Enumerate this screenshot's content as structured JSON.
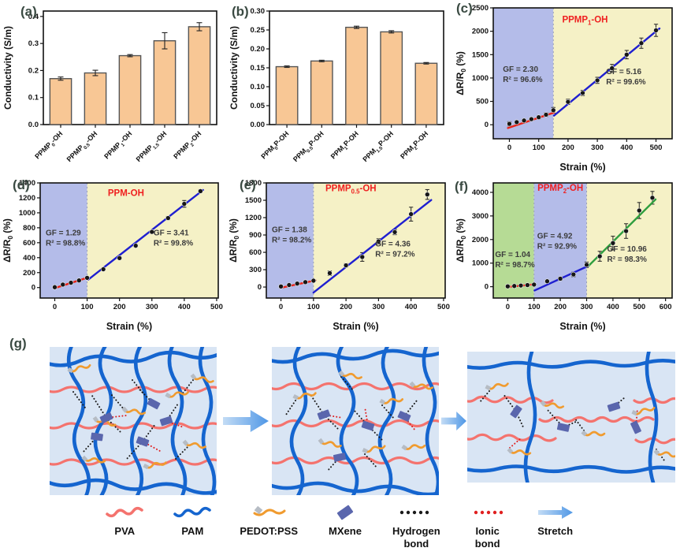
{
  "panels": {
    "a": {
      "tag": "(a)"
    },
    "b": {
      "tag": "(b)"
    },
    "c": {
      "tag": "(c)"
    },
    "d": {
      "tag": "(d)"
    },
    "e": {
      "tag": "(e)"
    },
    "f": {
      "tag": "(f)"
    },
    "g": {
      "tag": "(g)"
    }
  },
  "colors": {
    "bar_fill": "#f8c795",
    "bar_edge": "#555555",
    "frame": "#111111",
    "region_blue": "#b4bce9",
    "region_yellow": "#f5f1c6",
    "region_green": "#b6db95",
    "fit_red": "#e8251a",
    "fit_blue": "#1f1fd0",
    "fit_green": "#2f9e3f",
    "title_red": "#ef2020",
    "annotation": "#3c3c3c",
    "point": "#161616",
    "box_bg": "#d9e5f4",
    "pam_blue": "#1565cf",
    "pva_red": "#f4736e",
    "pedot_orange": "#f09b2f",
    "pedot_gray": "#b6bcc4",
    "mxene": "#5a66ad",
    "hbond": "#1b1b1b",
    "ibond": "#e02020",
    "arrow_light": "#c3dcf5",
    "arrow_dark": "#4f97e6"
  },
  "chart_data": [
    {
      "type": "bar",
      "panel": "a",
      "ylabel": "Conductivity (S/m)",
      "categories": [
        "PPMP_{0}-OH",
        "PPMP_{0.5}-OH",
        "PPMP_{1}-OH",
        "PPMP_{1.5}-OH",
        "PPMP_{2}-OH"
      ],
      "values": [
        0.17,
        0.191,
        0.255,
        0.31,
        0.362
      ],
      "errors": [
        0.006,
        0.01,
        0.004,
        0.03,
        0.015
      ],
      "ylim": [
        0,
        0.42
      ],
      "yticks": [
        0.0,
        0.1,
        0.2,
        0.3,
        0.4
      ],
      "ydecimals": 1
    },
    {
      "type": "bar",
      "panel": "b",
      "ylabel": "Conductivity (S/m)",
      "categories": [
        "PPM_{0}P-OH",
        "PPM_{0.5}P-OH",
        "PPM_{1}P-OH",
        "PPM_{1.5}P-OH",
        "PPM_{2}P-OH"
      ],
      "values": [
        0.153,
        0.168,
        0.257,
        0.245,
        0.162
      ],
      "errors": [
        0.002,
        0.002,
        0.003,
        0.003,
        0.002
      ],
      "ylim": [
        0,
        0.3
      ],
      "yticks": [
        0.0,
        0.05,
        0.1,
        0.15,
        0.2,
        0.25,
        0.3
      ],
      "ydecimals": 2
    },
    {
      "type": "scatter",
      "panel": "c",
      "title": "PPMP_{1}-OH",
      "title_xy": [
        258,
        2190
      ],
      "xlabel": "Strain (%)",
      "ylabel": "ΔR/R_{0} (%)",
      "xlim": [
        -55,
        555
      ],
      "ylim": [
        -300,
        2500
      ],
      "xticks": [
        0,
        100,
        200,
        300,
        400,
        500
      ],
      "yticks": [
        0,
        500,
        1000,
        1500,
        2000,
        2500
      ],
      "regions": [
        {
          "from": -55,
          "to": 150,
          "color": "#b4bce9"
        },
        {
          "from": 150,
          "to": 555,
          "color": "#f5f1c6"
        }
      ],
      "x": [
        0,
        25,
        50,
        75,
        100,
        125,
        150,
        200,
        250,
        300,
        350,
        400,
        450,
        500
      ],
      "y": [
        20,
        55,
        90,
        120,
        160,
        215,
        310,
        490,
        680,
        950,
        1210,
        1500,
        1745,
        2020
      ],
      "yerr": [
        45,
        30,
        30,
        30,
        35,
        40,
        60,
        55,
        55,
        65,
        80,
        90,
        110,
        130
      ],
      "fits": [
        {
          "x0": -5,
          "y0": -70,
          "x1": 152,
          "y1": 260,
          "color": "#e8251a"
        },
        {
          "x0": 152,
          "y0": 195,
          "x1": 512,
          "y1": 2060,
          "color": "#1f1fd0"
        }
      ],
      "annotations": [
        {
          "x": -22,
          "y": 1130,
          "lines": [
            "GF = 2.30",
            "R² = 96.6%"
          ]
        },
        {
          "x": 330,
          "y": 1080,
          "lines": [
            "GF = 5.16",
            "R² = 99.6%"
          ]
        }
      ]
    },
    {
      "type": "scatter",
      "panel": "d",
      "title": "PPM-OH",
      "title_xy": [
        220,
        1225
      ],
      "xlabel": "Strain (%)",
      "ylabel": "ΔR/R_{0} (%)",
      "xlim": [
        -45,
        505
      ],
      "ylim": [
        -140,
        1400
      ],
      "xticks": [
        0,
        100,
        200,
        300,
        400,
        500
      ],
      "yticks": [
        0,
        200,
        400,
        600,
        800,
        1000,
        1200,
        1400
      ],
      "regions": [
        {
          "from": -45,
          "to": 100,
          "color": "#b4bce9"
        },
        {
          "from": 100,
          "to": 505,
          "color": "#f5f1c6"
        }
      ],
      "x": [
        0,
        25,
        50,
        75,
        100,
        150,
        200,
        250,
        300,
        350,
        400,
        450
      ],
      "y": [
        5,
        40,
        65,
        95,
        130,
        245,
        395,
        560,
        745,
        930,
        1120,
        1290
      ],
      "yerr": [
        12,
        8,
        8,
        8,
        10,
        14,
        15,
        18,
        18,
        22,
        45,
        18
      ],
      "fits": [
        {
          "x0": -2,
          "y0": -10,
          "x1": 103,
          "y1": 135,
          "color": "#e8251a"
        },
        {
          "x0": 103,
          "y0": 105,
          "x1": 458,
          "y1": 1305,
          "color": "#1f1fd0"
        }
      ],
      "annotations": [
        {
          "x": -28,
          "y": 700,
          "lines": [
            "GF = 1.29",
            "R² = 98.8%"
          ]
        },
        {
          "x": 305,
          "y": 700,
          "lines": [
            "GF = 3.41",
            "R² = 99.8%"
          ]
        }
      ]
    },
    {
      "type": "scatter",
      "panel": "e",
      "title": "PPMP_{0.5}-OH",
      "title_xy": [
        215,
        1655
      ],
      "xlabel": "Strain (%)",
      "ylabel": "ΔR/R_{0} (%)",
      "xlim": [
        -45,
        505
      ],
      "ylim": [
        -190,
        1800
      ],
      "xticks": [
        0,
        100,
        200,
        300,
        400,
        500
      ],
      "yticks": [
        0,
        300,
        600,
        900,
        1200,
        1500,
        1800
      ],
      "regions": [
        {
          "from": -45,
          "to": 100,
          "color": "#b4bce9"
        },
        {
          "from": 100,
          "to": 505,
          "color": "#f5f1c6"
        }
      ],
      "x": [
        0,
        25,
        50,
        75,
        100,
        150,
        200,
        250,
        300,
        350,
        400,
        450
      ],
      "y": [
        10,
        35,
        60,
        85,
        110,
        240,
        375,
        520,
        790,
        950,
        1260,
        1600
      ],
      "yerr": [
        14,
        8,
        8,
        8,
        14,
        38,
        30,
        75,
        45,
        45,
        120,
        85
      ],
      "fits": [
        {
          "x0": -2,
          "y0": -15,
          "x1": 106,
          "y1": 115,
          "color": "#e8251a"
        },
        {
          "x0": 100,
          "y0": -95,
          "x1": 462,
          "y1": 1505,
          "color": "#1f1fd0"
        }
      ],
      "annotations": [
        {
          "x": -28,
          "y": 950,
          "lines": [
            "GF = 1.38",
            "R² = 98.2%"
          ]
        },
        {
          "x": 290,
          "y": 700,
          "lines": [
            "GF = 4.36",
            "R² = 97.2%"
          ]
        }
      ]
    },
    {
      "type": "scatter",
      "panel": "f",
      "title": "PPMP_{2}-OH",
      "title_xy": [
        200,
        4060
      ],
      "xlabel": "Strain (%)",
      "ylabel": "ΔR/R_{0} (%)",
      "xlim": [
        -55,
        625
      ],
      "ylim": [
        -480,
        4400
      ],
      "xticks": [
        0,
        100,
        200,
        300,
        400,
        500,
        600
      ],
      "yticks": [
        0,
        1000,
        2000,
        3000,
        4000
      ],
      "regions": [
        {
          "from": -55,
          "to": 100,
          "color": "#b6db95"
        },
        {
          "from": 100,
          "to": 300,
          "color": "#b4bce9"
        },
        {
          "from": 300,
          "to": 625,
          "color": "#f5f1c6"
        }
      ],
      "x": [
        0,
        25,
        50,
        75,
        100,
        150,
        200,
        250,
        300,
        350,
        400,
        450,
        500,
        550
      ],
      "y": [
        15,
        30,
        50,
        70,
        90,
        230,
        340,
        520,
        930,
        1290,
        1850,
        2360,
        3230,
        3770
      ],
      "yerr": [
        30,
        25,
        25,
        25,
        30,
        55,
        70,
        95,
        115,
        210,
        290,
        310,
        340,
        270
      ],
      "fits": [
        {
          "x0": -5,
          "y0": -15,
          "x1": 102,
          "y1": 100,
          "color": "#e8251a"
        },
        {
          "x0": 102,
          "y0": -160,
          "x1": 308,
          "y1": 890,
          "color": "#1f1fd0"
        },
        {
          "x0": 308,
          "y0": 890,
          "x1": 562,
          "y1": 3700,
          "color": "#2f9e3f"
        }
      ],
      "annotations": [
        {
          "x": -48,
          "y": 1260,
          "lines": [
            "GF = 1.04",
            "R² = 98.7%"
          ]
        },
        {
          "x": 112,
          "y": 2050,
          "lines": [
            "GF = 4.92",
            "R² = 92.9%"
          ]
        },
        {
          "x": 378,
          "y": 1500,
          "lines": [
            "GF = 10.96",
            "R² = 98.3%"
          ]
        }
      ]
    }
  ],
  "diagram": {
    "legend": [
      {
        "icon": "pva",
        "label": "PVA"
      },
      {
        "icon": "pam",
        "label": "PAM"
      },
      {
        "icon": "pedot",
        "label": "PEDOT:PSS"
      },
      {
        "icon": "mxene",
        "label": "MXene"
      },
      {
        "icon": "hbond",
        "label": "Hydrogen\nbond"
      },
      {
        "icon": "ibond",
        "label": "Ionic\nbond"
      },
      {
        "icon": "stretch",
        "label": "Stretch"
      }
    ]
  }
}
